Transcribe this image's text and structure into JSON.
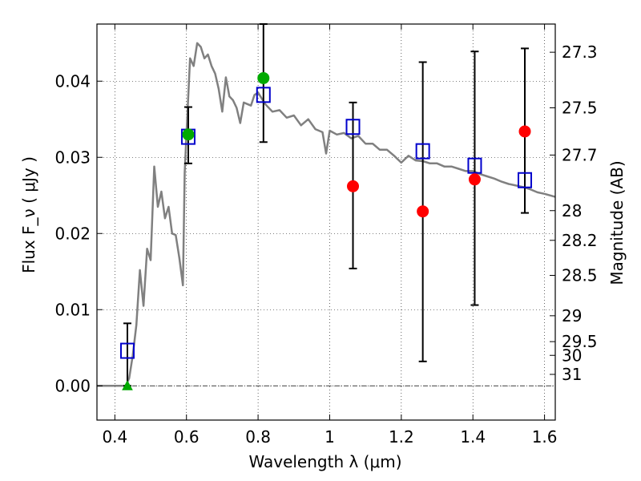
{
  "chart_data": {
    "type": "scatter",
    "xlabel": "Wavelength  λ (μm)",
    "ylabel": "Flux  F_ν  ( μJy )",
    "y2label": "Magnitude (AB)",
    "xlim": [
      0.35,
      1.63
    ],
    "ylim": [
      -0.0045,
      0.0475
    ],
    "grid": true,
    "x_ticks": [
      0.4,
      0.6,
      0.8,
      1.0,
      1.2,
      1.4,
      1.6
    ],
    "x_tick_labels": [
      "0.4",
      "0.6",
      "0.8",
      "1",
      "1.2",
      "1.4",
      "1.6"
    ],
    "y_ticks": [
      0.0,
      0.01,
      0.02,
      0.03,
      0.04
    ],
    "y_tick_labels": [
      "0.00",
      "0.01",
      "0.02",
      "0.03",
      "0.04"
    ],
    "y2_ticks": [
      {
        "label": "27.3",
        "flux": 0.0438
      },
      {
        "label": "27.5",
        "flux": 0.0365
      },
      {
        "label": "27.7",
        "flux": 0.0303
      },
      {
        "label": "28",
        "flux": 0.023
      },
      {
        "label": "28.2",
        "flux": 0.0191
      },
      {
        "label": "28.5",
        "flux": 0.0145
      },
      {
        "label": "29",
        "flux": 0.0092
      },
      {
        "label": "29.5",
        "flux": 0.0058
      },
      {
        "label": "30",
        "flux": 0.004
      },
      {
        "label": "31",
        "flux": 0.0015
      }
    ],
    "series": [
      {
        "kind": "line",
        "color": "#808080",
        "x": [
          0.35,
          0.43,
          0.44,
          0.45,
          0.46,
          0.47,
          0.48,
          0.49,
          0.5,
          0.51,
          0.52,
          0.53,
          0.54,
          0.55,
          0.56,
          0.57,
          0.58,
          0.59,
          0.595,
          0.6,
          0.61,
          0.62,
          0.63,
          0.64,
          0.65,
          0.66,
          0.67,
          0.68,
          0.69,
          0.7,
          0.71,
          0.72,
          0.73,
          0.74,
          0.75,
          0.76,
          0.77,
          0.78,
          0.79,
          0.8,
          0.82,
          0.84,
          0.86,
          0.88,
          0.9,
          0.92,
          0.94,
          0.96,
          0.98,
          0.99,
          1.0,
          1.02,
          1.04,
          1.06,
          1.08,
          1.1,
          1.12,
          1.14,
          1.16,
          1.18,
          1.2,
          1.22,
          1.24,
          1.26,
          1.28,
          1.3,
          1.32,
          1.34,
          1.36,
          1.38,
          1.4,
          1.42,
          1.44,
          1.46,
          1.48,
          1.5,
          1.52,
          1.54,
          1.56,
          1.58,
          1.6,
          1.63
        ],
        "values": [
          0.0,
          0.0,
          0.001,
          0.004,
          0.008,
          0.0152,
          0.0105,
          0.018,
          0.0165,
          0.0288,
          0.0235,
          0.0255,
          0.022,
          0.0235,
          0.02,
          0.0198,
          0.0168,
          0.0132,
          0.028,
          0.033,
          0.043,
          0.042,
          0.045,
          0.0445,
          0.043,
          0.0435,
          0.042,
          0.041,
          0.039,
          0.036,
          0.0405,
          0.038,
          0.0375,
          0.0365,
          0.0345,
          0.0372,
          0.037,
          0.0368,
          0.0382,
          0.0385,
          0.037,
          0.036,
          0.0362,
          0.0352,
          0.0355,
          0.0342,
          0.035,
          0.0337,
          0.0333,
          0.0305,
          0.0335,
          0.033,
          0.0332,
          0.0325,
          0.0328,
          0.0318,
          0.0318,
          0.031,
          0.031,
          0.0302,
          0.0293,
          0.0302,
          0.0296,
          0.0295,
          0.0292,
          0.0292,
          0.0288,
          0.0288,
          0.0285,
          0.0282,
          0.0282,
          0.0278,
          0.0275,
          0.0272,
          0.0268,
          0.0265,
          0.0263,
          0.0261,
          0.0258,
          0.0254,
          0.0252,
          0.0248
        ]
      },
      {
        "kind": "open-square",
        "color": "#0000cc",
        "x": [
          0.435,
          0.605,
          0.815,
          1.065,
          1.26,
          1.405,
          1.545
        ],
        "values": [
          0.0046,
          0.0327,
          0.0382,
          0.034,
          0.0308,
          0.0289,
          0.027
        ]
      },
      {
        "kind": "errorbar",
        "color": "#000000",
        "x": [
          0.435,
          0.605,
          0.815,
          1.065,
          1.26,
          1.405,
          1.545
        ],
        "low": [
          0.0,
          0.0292,
          0.032,
          0.0154,
          0.0032,
          0.0106,
          0.0227
        ],
        "high": [
          0.0082,
          0.0366,
          0.0475,
          0.0372,
          0.0425,
          0.0439,
          0.0443
        ]
      },
      {
        "kind": "filled-circle",
        "color": "#00aa00",
        "x": [
          0.605,
          0.815
        ],
        "values": [
          0.033,
          0.0404
        ]
      },
      {
        "kind": "filled-circle",
        "color": "#ff0000",
        "x": [
          1.065,
          1.26,
          1.405,
          1.545
        ],
        "values": [
          0.0262,
          0.0229,
          0.0271,
          0.0334
        ]
      },
      {
        "kind": "triangle",
        "color": "#00aa00",
        "x": [
          0.435
        ],
        "values": [
          0.0
        ]
      }
    ]
  }
}
